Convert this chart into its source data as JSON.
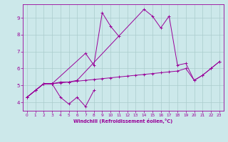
{
  "xlabel": "Windchill (Refroidissement éolien,°C)",
  "line_color": "#990099",
  "bg_color": "#cce8ea",
  "grid_color": "#aacccc",
  "lines": [
    {
      "x": [
        0,
        1,
        2,
        3,
        4,
        5,
        6,
        7,
        8
      ],
      "y": [
        4.3,
        4.7,
        5.1,
        5.1,
        4.3,
        3.9,
        4.3,
        3.75,
        4.7
      ]
    },
    {
      "x": [
        0,
        1,
        2,
        3,
        7,
        8,
        9,
        10,
        11
      ],
      "y": [
        4.3,
        4.7,
        5.1,
        5.1,
        6.9,
        6.2,
        9.3,
        8.5,
        7.9
      ]
    },
    {
      "x": [
        0,
        1,
        2,
        3,
        4,
        5,
        6,
        14,
        15,
        16,
        17,
        18,
        19,
        20,
        21,
        22,
        23
      ],
      "y": [
        4.3,
        4.7,
        5.1,
        5.1,
        5.2,
        5.2,
        5.3,
        9.5,
        9.1,
        8.4,
        9.1,
        6.2,
        6.3,
        5.3,
        5.6,
        6.0,
        6.4
      ]
    },
    {
      "x": [
        0,
        1,
        2,
        3,
        4,
        5,
        6,
        7,
        8,
        9,
        10,
        11,
        12,
        13,
        14,
        15,
        16,
        17,
        18,
        19,
        20,
        21,
        22,
        23
      ],
      "y": [
        4.3,
        4.7,
        5.1,
        5.1,
        5.15,
        5.2,
        5.25,
        5.3,
        5.35,
        5.4,
        5.45,
        5.5,
        5.55,
        5.6,
        5.65,
        5.7,
        5.75,
        5.8,
        5.85,
        6.0,
        5.3,
        5.6,
        6.0,
        6.4
      ]
    }
  ],
  "ylim": [
    3.5,
    9.8
  ],
  "xlim": [
    -0.5,
    23.5
  ],
  "yticks": [
    4,
    5,
    6,
    7,
    8,
    9
  ],
  "xticks": [
    0,
    1,
    2,
    3,
    4,
    5,
    6,
    7,
    8,
    9,
    10,
    11,
    12,
    13,
    14,
    15,
    16,
    17,
    18,
    19,
    20,
    21,
    22,
    23
  ]
}
